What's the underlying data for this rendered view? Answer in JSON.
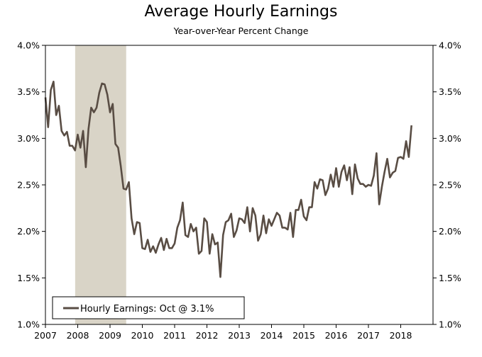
{
  "chart_data": {
    "type": "line",
    "title": "Average Hourly Earnings",
    "subtitle": "Year-over-Year Percent Change",
    "xlabel": "",
    "ylabel": "",
    "xlim": [
      2007,
      2019
    ],
    "ylim": [
      1.0,
      4.0
    ],
    "x_ticks": [
      "2007",
      "2008",
      "2009",
      "2010",
      "2011",
      "2012",
      "2013",
      "2014",
      "2015",
      "2016",
      "2017",
      "2018"
    ],
    "y_ticks_left": [
      "4.0%",
      "3.5%",
      "3.0%",
      "2.5%",
      "2.0%",
      "1.5%",
      "1.0%"
    ],
    "y_ticks_right": [
      "4.0%",
      "3.5%",
      "3.0%",
      "2.5%",
      "2.0%",
      "1.5%",
      "1.0%"
    ],
    "y_tick_values": [
      4.0,
      3.5,
      3.0,
      2.5,
      2.0,
      1.5,
      1.0
    ],
    "grid": false,
    "recession_shading": {
      "start": 2007.92,
      "end": 2009.5,
      "color": "#d9d4c7"
    },
    "series": [
      {
        "name": "Hourly Earnings",
        "color": "#594d44",
        "x_start": 2007.0,
        "step_months": 1,
        "values": [
          3.44,
          3.12,
          3.52,
          3.61,
          3.25,
          3.35,
          3.08,
          3.03,
          3.07,
          2.92,
          2.92,
          2.87,
          3.04,
          2.9,
          3.08,
          2.69,
          3.1,
          3.33,
          3.28,
          3.33,
          3.49,
          3.59,
          3.58,
          3.47,
          3.28,
          3.37,
          2.94,
          2.9,
          2.7,
          2.46,
          2.45,
          2.53,
          2.14,
          1.97,
          2.1,
          2.09,
          1.82,
          1.81,
          1.91,
          1.78,
          1.84,
          1.77,
          1.86,
          1.93,
          1.8,
          1.92,
          1.82,
          1.82,
          1.87,
          2.04,
          2.12,
          2.31,
          1.96,
          1.94,
          2.08,
          2.0,
          2.04,
          1.76,
          1.79,
          2.14,
          2.1,
          1.76,
          1.97,
          1.86,
          1.88,
          1.51,
          1.96,
          2.1,
          2.12,
          2.19,
          1.94,
          2.01,
          2.14,
          2.13,
          2.09,
          2.26,
          2.0,
          2.25,
          2.17,
          1.9,
          1.97,
          2.17,
          1.98,
          2.13,
          2.06,
          2.13,
          2.2,
          2.17,
          2.04,
          2.04,
          2.02,
          2.2,
          1.94,
          2.23,
          2.23,
          2.34,
          2.16,
          2.12,
          2.26,
          2.26,
          2.53,
          2.46,
          2.56,
          2.55,
          2.39,
          2.46,
          2.61,
          2.48,
          2.68,
          2.48,
          2.64,
          2.71,
          2.55,
          2.69,
          2.4,
          2.72,
          2.57,
          2.51,
          2.51,
          2.48,
          2.5,
          2.49,
          2.6,
          2.84,
          2.29,
          2.48,
          2.64,
          2.78,
          2.58,
          2.63,
          2.65,
          2.79,
          2.8,
          2.78,
          2.97,
          2.8,
          3.14
        ]
      }
    ],
    "legend": {
      "label": "Hourly Earnings: Oct @ 3.1%",
      "placement": "bottom-left"
    }
  }
}
